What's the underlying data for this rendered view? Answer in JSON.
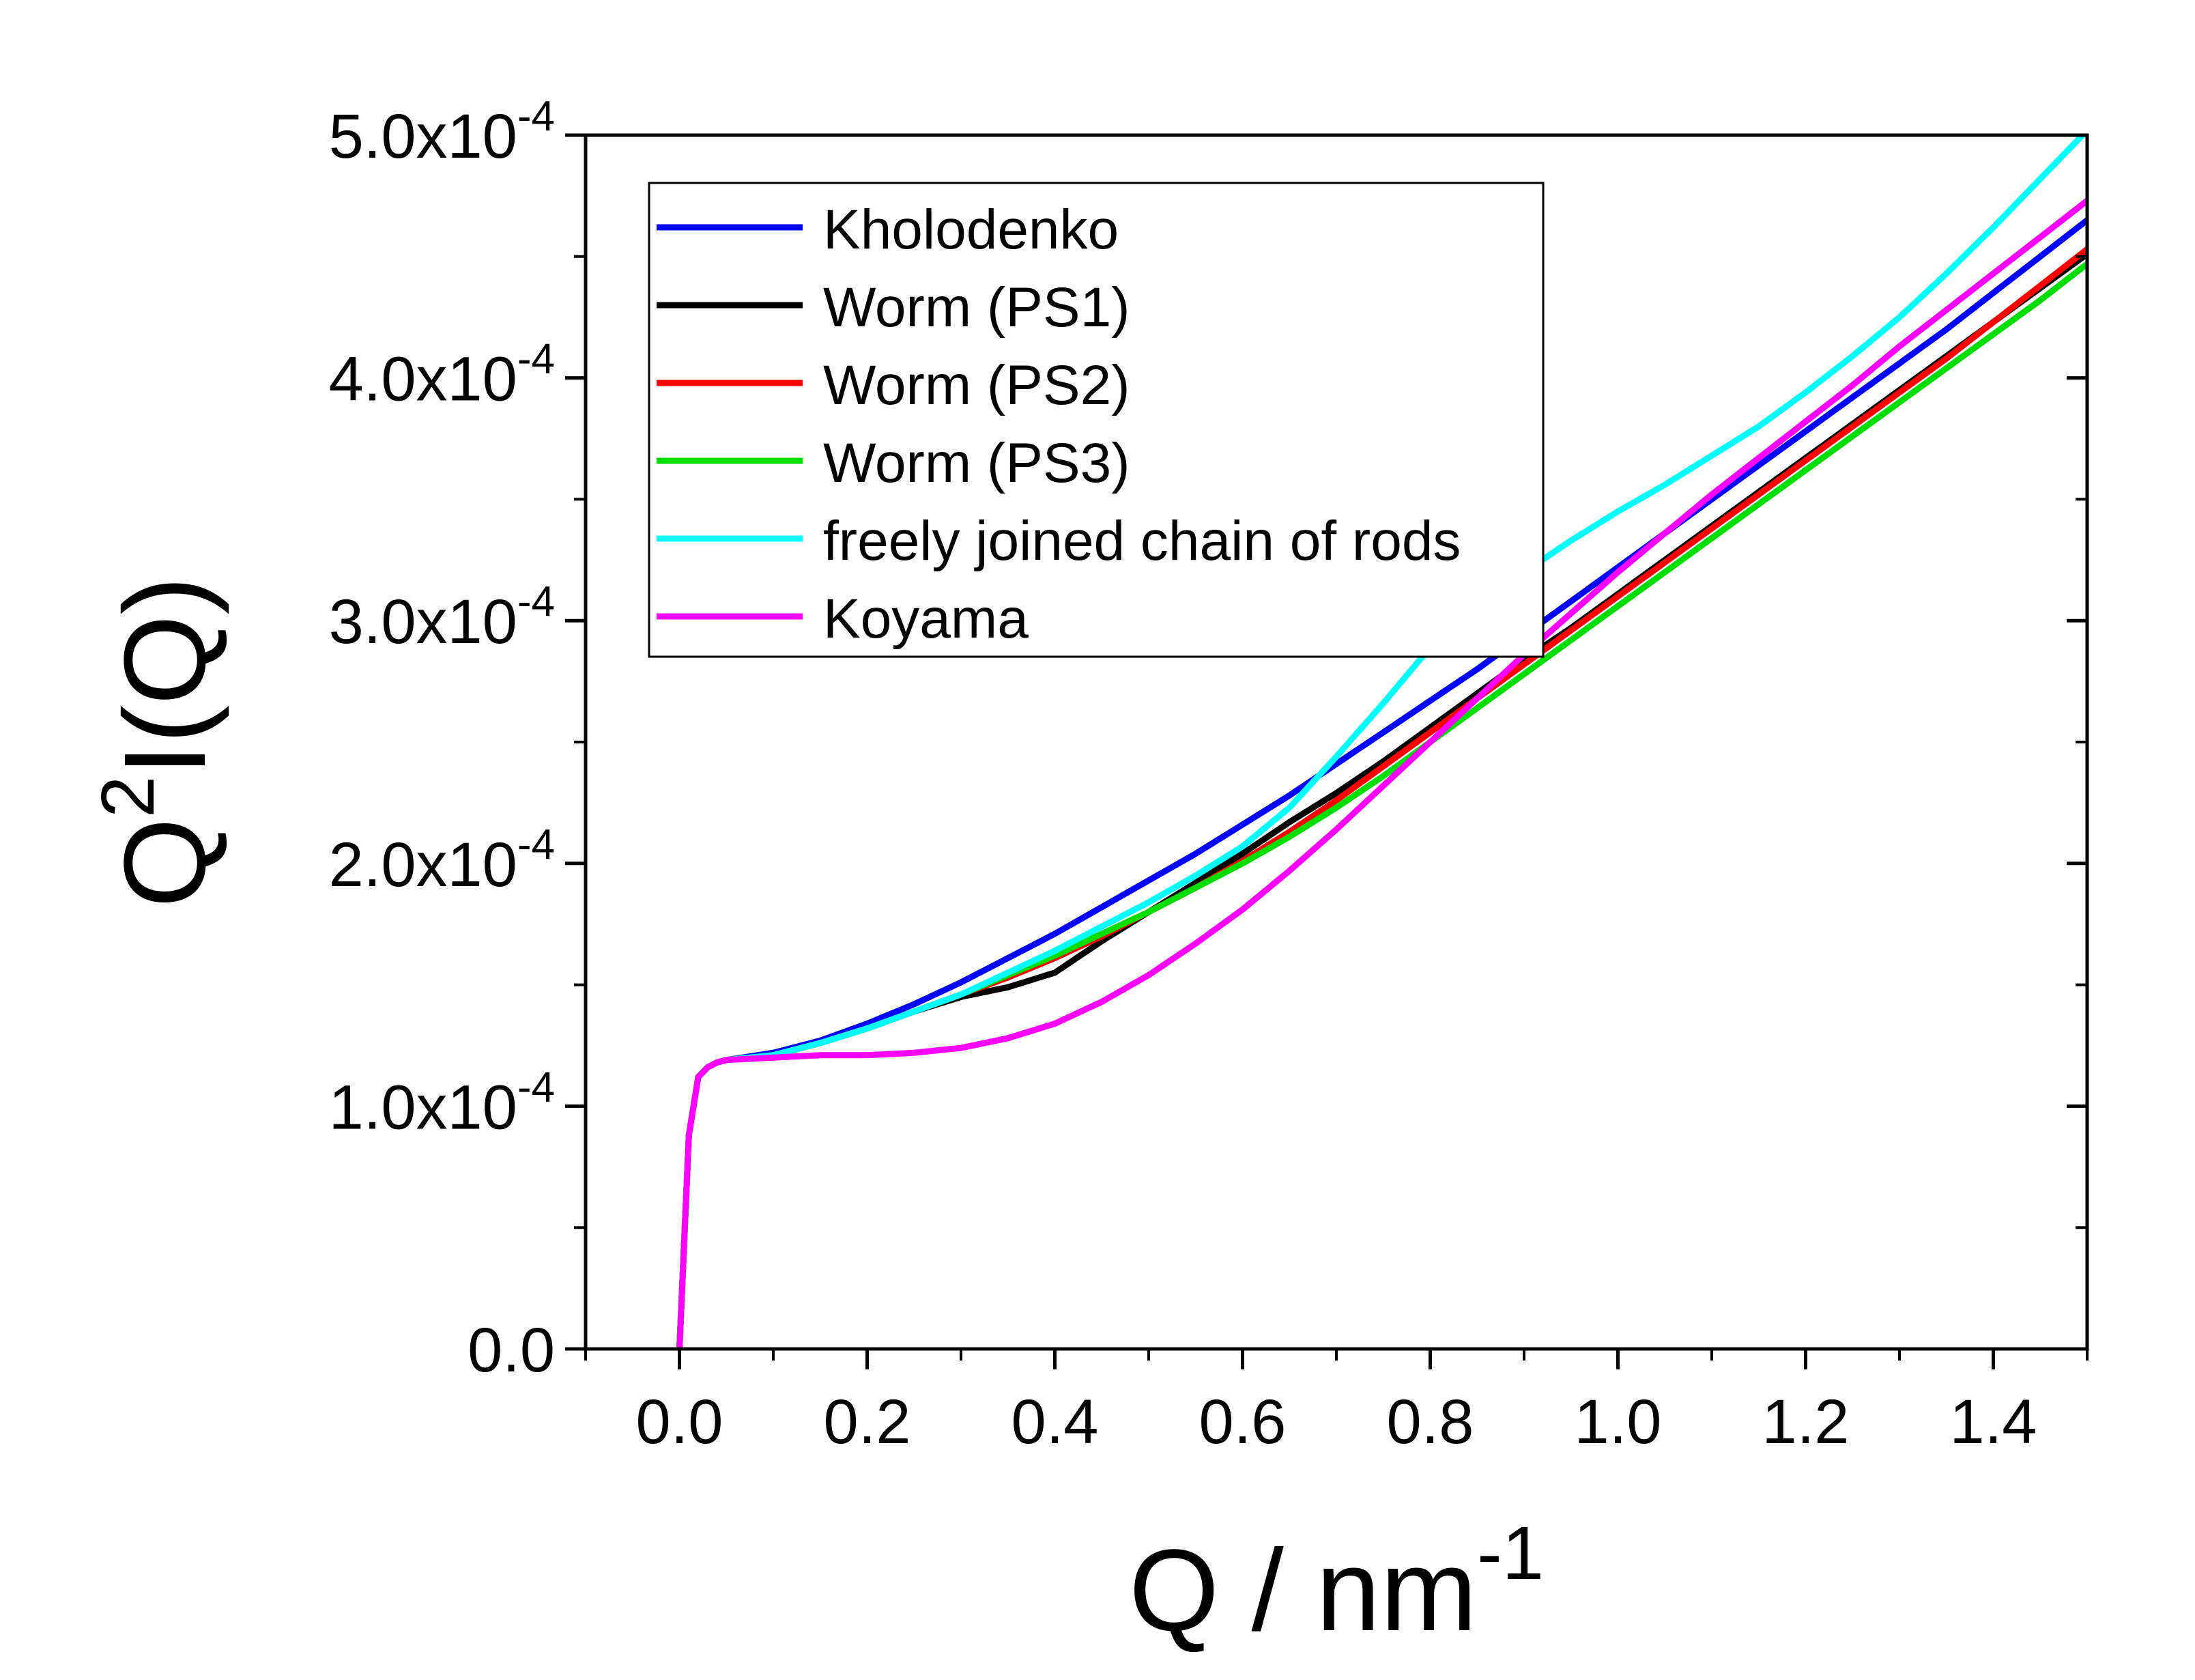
{
  "chart_data": {
    "type": "line",
    "xlabel": {
      "base": "Q / nm",
      "sup": "-1"
    },
    "ylabel": {
      "base": "Q",
      "sup": "2",
      "rest": "I(Q)"
    },
    "xlim": [
      -0.1,
      1.5
    ],
    "ylim": [
      0,
      0.0005
    ],
    "x_ticks": [
      {
        "value": 0.0,
        "label": "0.0"
      },
      {
        "value": 0.2,
        "label": "0.2"
      },
      {
        "value": 0.4,
        "label": "0.4"
      },
      {
        "value": 0.6,
        "label": "0.6"
      },
      {
        "value": 0.8,
        "label": "0.8"
      },
      {
        "value": 1.0,
        "label": "1.0"
      },
      {
        "value": 1.2,
        "label": "1.2"
      },
      {
        "value": 1.4,
        "label": "1.4"
      }
    ],
    "x_minor_ticks": [
      -0.1,
      0.1,
      0.3,
      0.5,
      0.7,
      0.9,
      1.1,
      1.3,
      1.5
    ],
    "y_ticks": [
      {
        "value": 0.0,
        "base": "0.0",
        "sup": ""
      },
      {
        "value": 0.0001,
        "base": "1.0x10",
        "sup": "-4"
      },
      {
        "value": 0.0002,
        "base": "2.0x10",
        "sup": "-4"
      },
      {
        "value": 0.0003,
        "base": "3.0x10",
        "sup": "-4"
      },
      {
        "value": 0.0004,
        "base": "4.0x10",
        "sup": "-4"
      },
      {
        "value": 0.0005,
        "base": "5.0x10",
        "sup": "-4"
      }
    ],
    "y_minor_ticks": [
      5e-05,
      0.00015,
      0.00025,
      0.00035,
      0.00045
    ],
    "legend_position": "top-left inside plot",
    "series": [
      {
        "name": "Kholodenko",
        "color": "#0000ff",
        "x": [
          0.0,
          0.01,
          0.02,
          0.03,
          0.04,
          0.05,
          0.1,
          0.15,
          0.2,
          0.25,
          0.3,
          0.35,
          0.4,
          0.45,
          0.5,
          0.55,
          0.6,
          0.65,
          0.7,
          0.75,
          0.8,
          0.85,
          0.9,
          0.95,
          1.0,
          1.05,
          1.1,
          1.15,
          1.2,
          1.25,
          1.3,
          1.35,
          1.4,
          1.45,
          1.5
        ],
        "y": [
          0.0,
          8.8e-05,
          0.000112,
          0.000116,
          0.000118,
          0.000119,
          0.000122,
          0.000127,
          0.000134,
          0.000142,
          0.000151,
          0.000161,
          0.000171,
          0.000182,
          0.000193,
          0.000204,
          0.000216,
          0.000228,
          0.000241,
          0.000254,
          0.000267,
          0.00028,
          0.000294,
          0.000308,
          0.000322,
          0.000336,
          0.00035,
          0.000364,
          0.000378,
          0.000392,
          0.000406,
          0.00042,
          0.000435,
          0.00045,
          0.000465
        ]
      },
      {
        "name": "Worm (PS1)",
        "color": "#000000",
        "x": [
          0.0,
          0.01,
          0.02,
          0.03,
          0.04,
          0.05,
          0.1,
          0.15,
          0.2,
          0.25,
          0.3,
          0.35,
          0.4,
          0.45,
          0.5,
          0.55,
          0.6,
          0.65,
          0.7,
          0.75,
          0.8,
          0.85,
          0.9,
          0.95,
          1.0,
          1.05,
          1.1,
          1.15,
          1.2,
          1.25,
          1.3,
          1.35,
          1.4,
          1.45,
          1.5
        ],
        "y": [
          0.0,
          8.8e-05,
          0.000112,
          0.000116,
          0.000118,
          0.000119,
          0.000121,
          0.000126,
          0.000132,
          0.000139,
          0.000145,
          0.000149,
          0.000155,
          0.000168,
          0.00018,
          0.000192,
          0.000204,
          0.000217,
          0.000229,
          0.000242,
          0.000256,
          0.00027,
          0.000284,
          0.000297,
          0.000311,
          0.000325,
          0.000339,
          0.000353,
          0.000367,
          0.000381,
          0.000395,
          0.000409,
          0.000423,
          0.000437,
          0.000451
        ]
      },
      {
        "name": "Worm (PS2)",
        "color": "#ff0000",
        "x": [
          0.0,
          0.01,
          0.02,
          0.03,
          0.04,
          0.05,
          0.1,
          0.15,
          0.2,
          0.25,
          0.3,
          0.35,
          0.4,
          0.45,
          0.5,
          0.55,
          0.6,
          0.65,
          0.7,
          0.75,
          0.8,
          0.85,
          0.9,
          0.95,
          1.0,
          1.05,
          1.1,
          1.15,
          1.2,
          1.25,
          1.3,
          1.35,
          1.4,
          1.45,
          1.5
        ],
        "y": [
          0.0,
          8.8e-05,
          0.000112,
          0.000116,
          0.000118,
          0.000119,
          0.000121,
          0.000126,
          0.000132,
          0.000139,
          0.000146,
          0.000153,
          0.000161,
          0.00017,
          0.00018,
          0.00019,
          0.000201,
          0.000213,
          0.000226,
          0.00024,
          0.000254,
          0.000268,
          0.000282,
          0.000296,
          0.00031,
          0.000324,
          0.000338,
          0.000352,
          0.000366,
          0.00038,
          0.000394,
          0.000408,
          0.000423,
          0.000438,
          0.000453
        ]
      },
      {
        "name": "Worm (PS3)",
        "color": "#00dd00",
        "x": [
          0.0,
          0.01,
          0.02,
          0.03,
          0.04,
          0.05,
          0.1,
          0.15,
          0.2,
          0.25,
          0.3,
          0.35,
          0.4,
          0.45,
          0.5,
          0.55,
          0.6,
          0.65,
          0.7,
          0.75,
          0.8,
          0.85,
          0.9,
          0.95,
          1.0,
          1.05,
          1.1,
          1.15,
          1.2,
          1.25,
          1.3,
          1.35,
          1.4,
          1.45,
          1.5
        ],
        "y": [
          0.0,
          8.8e-05,
          0.000112,
          0.000116,
          0.000118,
          0.000119,
          0.000121,
          0.000126,
          0.000132,
          0.000139,
          0.000146,
          0.000154,
          0.000162,
          0.000171,
          0.00018,
          0.00019,
          0.0002,
          0.000211,
          0.000223,
          0.000236,
          0.00025,
          0.000264,
          0.000278,
          0.000292,
          0.000306,
          0.00032,
          0.000334,
          0.000348,
          0.000362,
          0.000376,
          0.00039,
          0.000404,
          0.000418,
          0.000432,
          0.000447
        ]
      },
      {
        "name": "freely joined chain of rods",
        "color": "#00ffff",
        "x": [
          0.0,
          0.01,
          0.02,
          0.03,
          0.04,
          0.05,
          0.1,
          0.15,
          0.2,
          0.25,
          0.3,
          0.35,
          0.4,
          0.45,
          0.5,
          0.55,
          0.6,
          0.65,
          0.7,
          0.75,
          0.8,
          0.85,
          0.9,
          0.95,
          1.0,
          1.05,
          1.1,
          1.15,
          1.2,
          1.25,
          1.3,
          1.35,
          1.4,
          1.45,
          1.5
        ],
        "y": [
          0.0,
          8.8e-05,
          0.000112,
          0.000116,
          0.000118,
          0.000119,
          0.000121,
          0.000126,
          0.000132,
          0.000139,
          0.000146,
          0.000155,
          0.000164,
          0.000174,
          0.000184,
          0.000195,
          0.000207,
          0.000223,
          0.000244,
          0.000266,
          0.000289,
          0.000306,
          0.00032,
          0.000333,
          0.000345,
          0.000356,
          0.000368,
          0.00038,
          0.000394,
          0.000409,
          0.000425,
          0.000443,
          0.000462,
          0.000482,
          0.000502
        ]
      },
      {
        "name": "Koyama",
        "color": "#ff00ff",
        "x": [
          0.0,
          0.01,
          0.02,
          0.03,
          0.04,
          0.05,
          0.1,
          0.15,
          0.2,
          0.25,
          0.3,
          0.35,
          0.4,
          0.45,
          0.5,
          0.55,
          0.6,
          0.65,
          0.7,
          0.75,
          0.8,
          0.85,
          0.9,
          0.95,
          1.0,
          1.05,
          1.1,
          1.15,
          1.2,
          1.25,
          1.3,
          1.35,
          1.4,
          1.45,
          1.5
        ],
        "y": [
          0.0,
          8.8e-05,
          0.000112,
          0.000116,
          0.000118,
          0.000119,
          0.00012,
          0.000121,
          0.000121,
          0.000122,
          0.000124,
          0.000128,
          0.000134,
          0.000143,
          0.000154,
          0.000167,
          0.000181,
          0.000197,
          0.000214,
          0.000232,
          0.00025,
          0.000268,
          0.000286,
          0.000303,
          0.00032,
          0.000336,
          0.000352,
          0.000367,
          0.000382,
          0.000397,
          0.000413,
          0.000428,
          0.000443,
          0.000458,
          0.000473
        ]
      }
    ]
  }
}
